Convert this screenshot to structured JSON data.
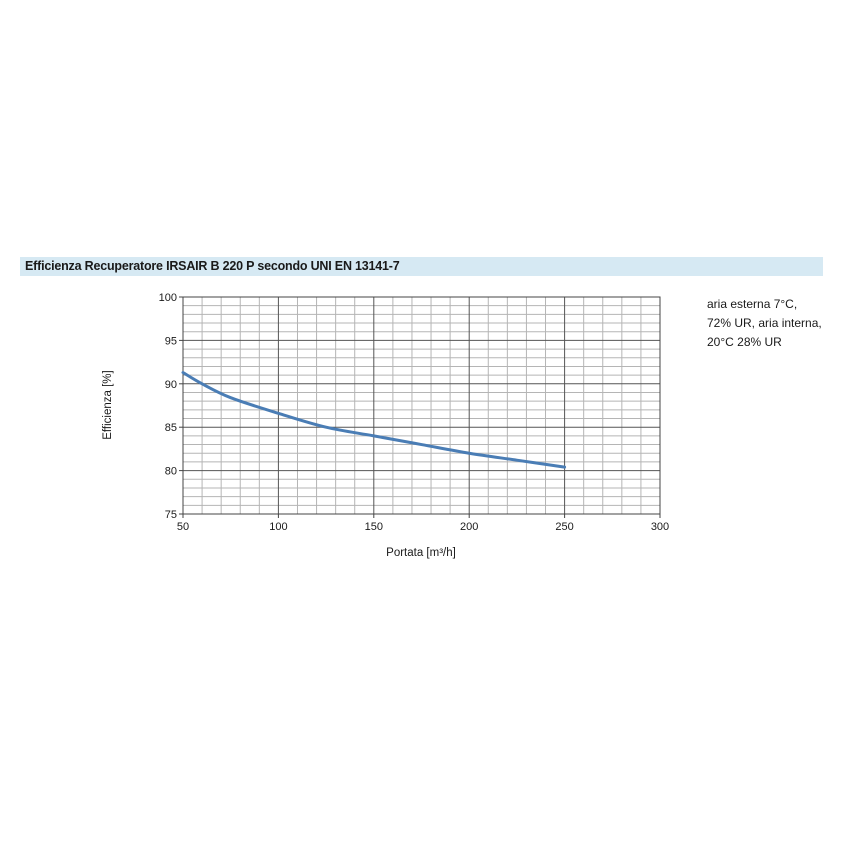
{
  "header": {
    "title": "Efficienza Recuperatore IRSAIR B 220 P secondo UNI EN 13141-7"
  },
  "note": {
    "lines": [
      "aria esterna 7°C,",
      "72% UR, aria interna,",
      "20°C 28% UR"
    ]
  },
  "chart_data": {
    "type": "line",
    "title": "Efficienza Recuperatore IRSAIR B 220 P secondo UNI EN 13141-7",
    "xlabel": "Portata [m³/h]",
    "ylabel": "Efficienza [%]",
    "xlim": [
      50,
      300
    ],
    "ylim": [
      75,
      100
    ],
    "x_ticks": [
      50,
      100,
      150,
      200,
      250,
      300
    ],
    "y_ticks": [
      75,
      80,
      85,
      90,
      95,
      100
    ],
    "x_tick_labels": [
      "50",
      "100",
      "150",
      "200",
      "250",
      "300"
    ],
    "y_tick_labels": [
      "75",
      "80",
      "85",
      "90",
      "95",
      "100"
    ],
    "grid": true,
    "line_color": "#4a7db5",
    "series": [
      {
        "name": "",
        "x": [
          50,
          60,
          75,
          100,
          125,
          150,
          175,
          200,
          225,
          250
        ],
        "y": [
          91.3,
          90.0,
          88.4,
          86.6,
          85.0,
          84.0,
          83.0,
          82.0,
          81.2,
          80.4
        ]
      }
    ]
  }
}
